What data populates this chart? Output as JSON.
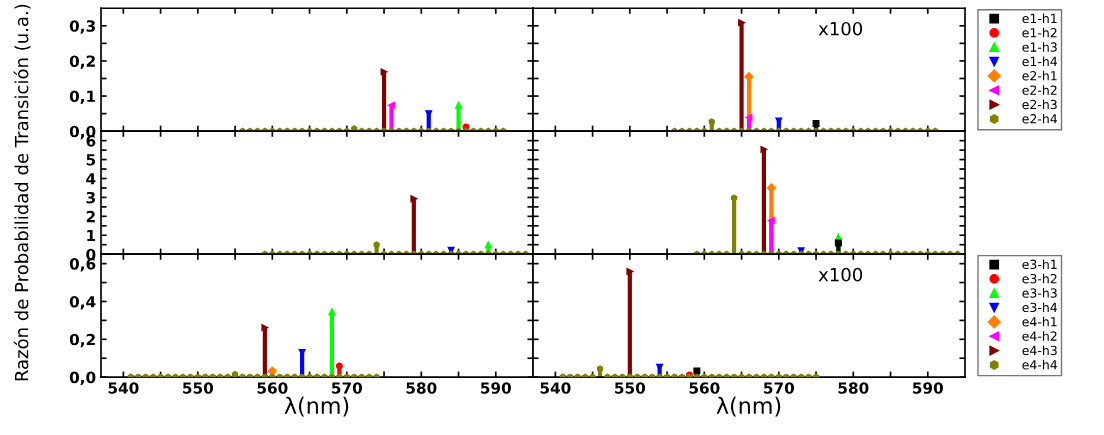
{
  "chart_data": [
    {
      "type": "lollipop",
      "tick_labels": "y",
      "xlim": [
        537,
        595
      ],
      "ylim": [
        0,
        0.35
      ],
      "xticks": [
        {
          "value": 540,
          "label": null
        },
        {
          "value": 545,
          "label": null
        },
        {
          "value": 550,
          "label": null
        },
        {
          "value": 555,
          "label": null
        },
        {
          "value": 560,
          "label": null
        },
        {
          "value": 565,
          "label": null
        },
        {
          "value": 570,
          "label": null
        },
        {
          "value": 575,
          "label": null
        },
        {
          "value": 580,
          "label": null
        },
        {
          "value": 585,
          "label": null
        },
        {
          "value": 590,
          "label": null
        }
      ],
      "yticks": [
        {
          "value": 0,
          "label": "0,0"
        },
        {
          "value": 0.05,
          "label": null
        },
        {
          "value": 0.1,
          "label": "0,1"
        },
        {
          "value": 0.15,
          "label": null
        },
        {
          "value": 0.2,
          "label": "0,2"
        },
        {
          "value": 0.25,
          "label": null
        },
        {
          "value": 0.3,
          "label": "0,3"
        }
      ],
      "series": [
        {
          "color": "#ff0000",
          "marker": "circle",
          "x": [
            586
          ],
          "values": [
            0.012
          ]
        },
        {
          "color": "#00ff00",
          "marker": "triangle",
          "x": [
            585
          ],
          "values": [
            0.074
          ]
        },
        {
          "color": "#0000ff",
          "marker": "triangle-down",
          "x": [
            581
          ],
          "values": [
            0.05
          ]
        },
        {
          "color": "#ff00ff",
          "marker": "triangle-left",
          "x": [
            576
          ],
          "values": [
            0.074
          ]
        },
        {
          "color": "#800000",
          "marker": "triangle-right",
          "x": [
            575
          ],
          "values": [
            0.169
          ]
        },
        {
          "color": "#808000",
          "x": [
            556,
            557,
            558,
            559,
            560,
            561,
            562,
            563,
            564,
            565,
            566,
            567,
            568,
            569,
            570,
            571,
            572,
            573,
            574,
            575,
            576,
            577,
            578,
            579,
            580,
            581,
            582,
            583,
            584,
            585,
            586,
            587,
            588,
            589,
            590,
            591
          ],
          "values": [
            0,
            0,
            0,
            0,
            0,
            0,
            0,
            0,
            0,
            0,
            0,
            0,
            0,
            0,
            0,
            0.007,
            0,
            0,
            0,
            0,
            0,
            0,
            0,
            0,
            0,
            0,
            0,
            0,
            0,
            0,
            0,
            0,
            0,
            0,
            0,
            0
          ]
        }
      ]
    },
    {
      "type": "lollipop",
      "tick_labels": false,
      "legend": "right",
      "xlim": [
        537,
        595
      ],
      "ylim": [
        0,
        0.35
      ],
      "xticks": [
        {
          "value": 540,
          "label": null
        },
        {
          "value": 545,
          "label": null
        },
        {
          "value": 550,
          "label": null
        },
        {
          "value": 555,
          "label": null
        },
        {
          "value": 560,
          "label": null
        },
        {
          "value": 565,
          "label": null
        },
        {
          "value": 570,
          "label": null
        },
        {
          "value": 575,
          "label": null
        },
        {
          "value": 580,
          "label": null
        },
        {
          "value": 585,
          "label": null
        },
        {
          "value": 590,
          "label": null
        }
      ],
      "yticks": [
        {
          "value": 0,
          "label": null
        },
        {
          "value": 0.05,
          "label": null
        },
        {
          "value": 0.1,
          "label": null
        },
        {
          "value": 0.15,
          "label": null
        },
        {
          "value": 0.2,
          "label": null
        },
        {
          "value": 0.25,
          "label": null
        },
        {
          "value": 0.3,
          "label": null
        }
      ],
      "annotations": [
        "x100"
      ],
      "series": [
        {
          "name": "e1-h1",
          "color": "#000000",
          "marker": "square",
          "x": [
            575
          ],
          "values": [
            0.022
          ]
        },
        {
          "name": "e1-h2",
          "color": "#ff0000",
          "marker": "circle"
        },
        {
          "name": "e1-h3",
          "color": "#00ff00",
          "marker": "triangle"
        },
        {
          "name": "e1-h4",
          "color": "#0000ff",
          "marker": "triangle-down",
          "x": [
            570
          ],
          "values": [
            0.029
          ]
        },
        {
          "name": "e2-h1",
          "color": "#ff8000",
          "marker": "diamond",
          "x": [
            566
          ],
          "values": [
            0.155
          ]
        },
        {
          "name": "e2-h2",
          "color": "#ff00ff",
          "marker": "triangle-left",
          "x": [
            566
          ],
          "values": [
            0.039
          ]
        },
        {
          "name": "e2-h3",
          "color": "#800000",
          "marker": "triangle-right",
          "x": [
            565
          ],
          "values": [
            0.309
          ]
        },
        {
          "name": "e2-h4",
          "color": "#808000",
          "x": [
            556,
            557,
            558,
            559,
            560,
            561,
            562,
            563,
            564,
            565,
            566,
            567,
            568,
            569,
            570,
            571,
            572,
            573,
            574,
            575,
            576,
            577,
            578,
            579,
            580,
            581,
            582,
            583,
            584,
            585,
            586,
            587,
            588,
            589,
            590,
            591
          ],
          "values": [
            0,
            0,
            0,
            0,
            0,
            0.027,
            0,
            0,
            0,
            0,
            0,
            0,
            0,
            0,
            0,
            0,
            0,
            0,
            0,
            0,
            0,
            0,
            0,
            0,
            0,
            0,
            0,
            0,
            0,
            0,
            0,
            0,
            0,
            0,
            0,
            0
          ]
        }
      ]
    },
    {
      "type": "lollipop",
      "tick_labels": "y",
      "xlim": [
        537,
        595
      ],
      "ylim": [
        0,
        6.5
      ],
      "ylabel": "Razón de Probabilidad de Transición (u.a.)",
      "xticks": [
        {
          "value": 540,
          "label": null
        },
        {
          "value": 545,
          "label": null
        },
        {
          "value": 550,
          "label": null
        },
        {
          "value": 555,
          "label": null
        },
        {
          "value": 560,
          "label": null
        },
        {
          "value": 565,
          "label": null
        },
        {
          "value": 570,
          "label": null
        },
        {
          "value": 575,
          "label": null
        },
        {
          "value": 580,
          "label": null
        },
        {
          "value": 585,
          "label": null
        },
        {
          "value": 590,
          "label": null
        }
      ],
      "yticks": [
        0,
        {
          "value": 0.5,
          "label": null
        },
        1,
        {
          "value": 1.5,
          "label": null
        },
        2,
        {
          "value": 2.5,
          "label": null
        },
        3,
        {
          "value": 3.5,
          "label": null
        },
        4,
        {
          "value": 4.5,
          "label": null
        },
        5,
        {
          "value": 5.5,
          "label": null
        },
        6
      ],
      "series": [
        {
          "color": "#00ff00",
          "marker": "triangle",
          "x": [
            589
          ],
          "values": [
            0.5
          ]
        },
        {
          "color": "#0000ff",
          "marker": "triangle-down",
          "x": [
            584
          ],
          "values": [
            0.21
          ]
        },
        {
          "color": "#800000",
          "marker": "triangle-right",
          "x": [
            579
          ],
          "values": [
            2.93
          ]
        },
        {
          "color": "#808000",
          "x": [
            559,
            560,
            561,
            562,
            563,
            564,
            565,
            566,
            567,
            568,
            569,
            570,
            571,
            572,
            573,
            574,
            575,
            576,
            577,
            578,
            579,
            580,
            581,
            582,
            583,
            584,
            585,
            586,
            587,
            588,
            589,
            590,
            591,
            592,
            593,
            594
          ],
          "values": [
            0,
            0,
            0,
            0,
            0,
            0,
            0,
            0,
            0,
            0,
            0,
            0,
            0,
            0,
            0,
            0.5,
            0,
            0,
            0,
            0,
            0,
            0,
            0,
            0,
            0,
            0,
            0,
            0,
            0,
            0,
            0,
            0,
            0,
            0,
            0,
            0
          ]
        }
      ]
    },
    {
      "type": "lollipop",
      "tick_labels": false,
      "xlim": [
        537,
        595
      ],
      "ylim": [
        0,
        6.5
      ],
      "xticks": [
        {
          "value": 540,
          "label": null
        },
        {
          "value": 545,
          "label": null
        },
        {
          "value": 550,
          "label": null
        },
        {
          "value": 555,
          "label": null
        },
        {
          "value": 560,
          "label": null
        },
        {
          "value": 565,
          "label": null
        },
        {
          "value": 570,
          "label": null
        },
        {
          "value": 575,
          "label": null
        },
        {
          "value": 580,
          "label": null
        },
        {
          "value": 585,
          "label": null
        },
        {
          "value": 590,
          "label": null
        }
      ],
      "yticks": [
        {
          "value": 0,
          "label": null
        },
        {
          "value": 0.5,
          "label": null
        },
        {
          "value": 1,
          "label": null
        },
        {
          "value": 1.5,
          "label": null
        },
        {
          "value": 2,
          "label": null
        },
        {
          "value": 2.5,
          "label": null
        },
        {
          "value": 3,
          "label": null
        },
        {
          "value": 3.5,
          "label": null
        },
        {
          "value": 4,
          "label": null
        },
        {
          "value": 4.5,
          "label": null
        },
        {
          "value": 5,
          "label": null
        },
        {
          "value": 5.5,
          "label": null
        },
        {
          "value": 6,
          "label": null
        }
      ],
      "series": [
        {
          "color": "#00ff00",
          "marker": "triangle",
          "x": [
            578
          ],
          "values": [
            0.89
          ]
        },
        {
          "color": "#000000",
          "marker": "square",
          "x": [
            578
          ],
          "values": [
            0.59
          ]
        },
        {
          "color": "#0000ff",
          "marker": "triangle-down",
          "x": [
            573
          ],
          "values": [
            0.18
          ]
        },
        {
          "color": "#ff8000",
          "marker": "diamond",
          "x": [
            569
          ],
          "values": [
            3.5
          ]
        },
        {
          "color": "#ff00ff",
          "marker": "triangle-left",
          "x": [
            569
          ],
          "values": [
            1.78
          ]
        },
        {
          "color": "#800000",
          "marker": "triangle-right",
          "x": [
            568
          ],
          "values": [
            5.54
          ]
        },
        {
          "color": "#808000",
          "x": [
            559,
            560,
            561,
            562,
            563,
            564,
            565,
            566,
            567,
            568,
            569,
            570,
            571,
            572,
            573,
            574,
            575,
            576,
            577,
            578,
            579,
            580,
            581,
            582,
            583,
            584,
            585,
            586,
            587,
            588,
            589,
            590,
            591,
            592,
            593,
            594
          ],
          "values": [
            0,
            0,
            0,
            0,
            0,
            2.97,
            0,
            0,
            0,
            0,
            0,
            0,
            0,
            0,
            0,
            0,
            0,
            0,
            0,
            0,
            0,
            0,
            0,
            0,
            0,
            0,
            0,
            0,
            0,
            0,
            0,
            0,
            0,
            0,
            0,
            0
          ]
        }
      ]
    },
    {
      "type": "lollipop",
      "xlim": [
        537,
        595
      ],
      "ylim": [
        0,
        0.65
      ],
      "xlabel": "λ(nm)",
      "xticks": [
        540,
        {
          "value": 545,
          "label": null
        },
        550,
        {
          "value": 555,
          "label": null
        },
        560,
        {
          "value": 565,
          "label": null
        },
        570,
        {
          "value": 575,
          "label": null
        },
        580,
        {
          "value": 585,
          "label": null
        },
        590
      ],
      "yticks": [
        {
          "value": 0,
          "label": "0,0"
        },
        {
          "value": 0.1,
          "label": null
        },
        {
          "value": 0.2,
          "label": "0,2"
        },
        {
          "value": 0.3,
          "label": null
        },
        {
          "value": 0.4,
          "label": "0,4"
        },
        {
          "value": 0.5,
          "label": null
        },
        {
          "value": 0.6,
          "label": "0,6"
        }
      ],
      "series": [
        {
          "color": "#ff0000",
          "marker": "circle",
          "x": [
            569
          ],
          "values": [
            0.059
          ]
        },
        {
          "color": "#00ff00",
          "marker": "triangle",
          "x": [
            568
          ],
          "values": [
            0.346
          ]
        },
        {
          "color": "#0000ff",
          "marker": "triangle-down",
          "x": [
            564
          ],
          "values": [
            0.131
          ]
        },
        {
          "color": "#ff8000",
          "marker": "diamond",
          "x": [
            560
          ],
          "values": [
            0.032
          ]
        },
        {
          "color": "#800000",
          "marker": "triangle-right",
          "x": [
            559
          ],
          "values": [
            0.262
          ]
        },
        {
          "color": "#808000",
          "x": [
            541,
            542,
            543,
            544,
            545,
            546,
            547,
            548,
            549,
            550,
            551,
            552,
            553,
            554,
            555,
            556,
            557,
            558,
            559,
            560,
            561,
            562,
            563,
            564,
            565,
            566,
            567,
            568,
            569,
            570,
            571,
            572,
            573,
            574
          ],
          "values": [
            0,
            0,
            0,
            0,
            0,
            0,
            0,
            0,
            0,
            0,
            0,
            0,
            0,
            0,
            0.014,
            0,
            0,
            0,
            0,
            0,
            0,
            0,
            0,
            0,
            0,
            0,
            0,
            0,
            0,
            0,
            0,
            0,
            0,
            0
          ]
        }
      ]
    },
    {
      "type": "lollipop",
      "tick_labels": "x",
      "legend": "right",
      "xlim": [
        537,
        595
      ],
      "ylim": [
        0,
        0.65
      ],
      "xlabel": "λ(nm)",
      "xticks": [
        540,
        {
          "value": 545,
          "label": null
        },
        550,
        {
          "value": 555,
          "label": null
        },
        560,
        {
          "value": 565,
          "label": null
        },
        570,
        {
          "value": 575,
          "label": null
        },
        580,
        {
          "value": 585,
          "label": null
        },
        590
      ],
      "yticks": [
        {
          "value": 0,
          "label": null
        },
        {
          "value": 0.1,
          "label": null
        },
        {
          "value": 0.2,
          "label": null
        },
        {
          "value": 0.3,
          "label": null
        },
        {
          "value": 0.4,
          "label": null
        },
        {
          "value": 0.5,
          "label": null
        },
        {
          "value": 0.6,
          "label": null
        }
      ],
      "annotations": [
        "x100"
      ],
      "series": [
        {
          "name": "e3-h1",
          "color": "#000000",
          "marker": "square",
          "x": [
            559
          ],
          "values": [
            0.032
          ]
        },
        {
          "name": "e3-h2",
          "color": "#ff0000",
          "marker": "circle",
          "x": [
            558
          ],
          "values": [
            0.011
          ]
        },
        {
          "name": "e3-h3",
          "color": "#00ff00",
          "marker": "triangle"
        },
        {
          "name": "e3-h4",
          "color": "#0000ff",
          "marker": "triangle-down",
          "x": [
            554
          ],
          "values": [
            0.053
          ]
        },
        {
          "name": "e4-h1",
          "color": "#ff8000",
          "marker": "diamond"
        },
        {
          "name": "e4-h2",
          "color": "#ff00ff",
          "marker": "triangle-left"
        },
        {
          "name": "e4-h3",
          "color": "#800000",
          "marker": "triangle-right",
          "x": [
            550
          ],
          "values": [
            0.559
          ]
        },
        {
          "name": "e4-h4",
          "color": "#808000",
          "x": [
            541,
            542,
            543,
            544,
            545,
            546,
            547,
            548,
            549,
            550,
            551,
            552,
            553,
            554,
            555,
            556,
            557,
            558,
            559,
            560,
            561,
            562,
            563,
            564,
            565,
            566,
            567,
            568,
            569,
            570,
            571,
            572,
            573,
            574,
            575
          ],
          "values": [
            0,
            0,
            0,
            0,
            0,
            0.044,
            0,
            0,
            0,
            0,
            0,
            0,
            0,
            0,
            0,
            0,
            0,
            0,
            0,
            0,
            0,
            0,
            0,
            0,
            0,
            0,
            0,
            0,
            0,
            0,
            0,
            0,
            0,
            0,
            0
          ]
        }
      ]
    }
  ]
}
